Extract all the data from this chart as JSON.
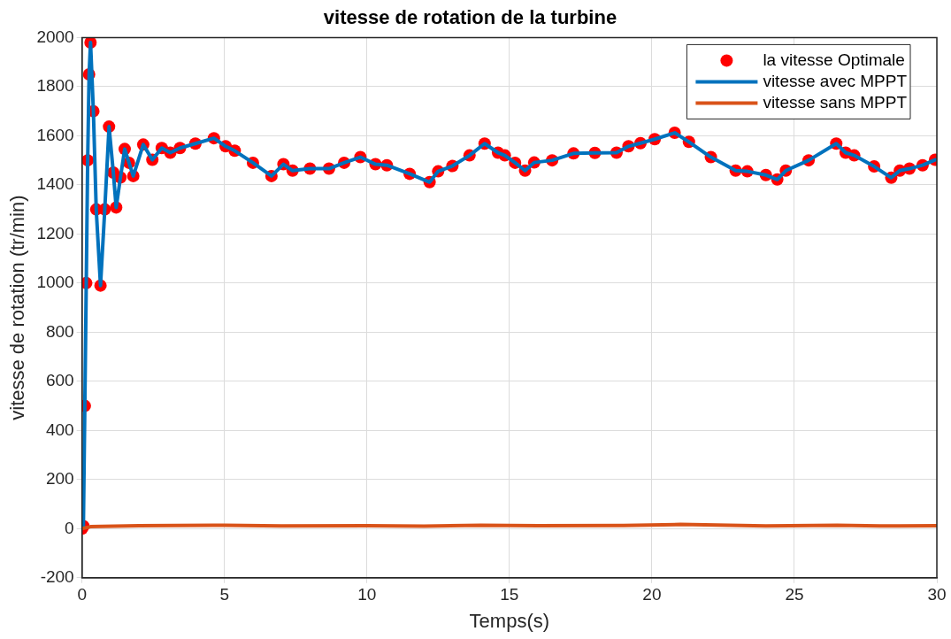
{
  "chart_data": {
    "type": "line",
    "title": "vitesse de rotation de la turbine",
    "xlabel": "Temps(s)",
    "ylabel": "vitesse de rotation (tr/min)",
    "xlim": [
      0,
      30
    ],
    "xticks": [
      0,
      5,
      10,
      15,
      20,
      25,
      30
    ],
    "ylim": [
      -200,
      2000
    ],
    "yticks": [
      -200,
      0,
      200,
      400,
      600,
      800,
      1000,
      1200,
      1400,
      1600,
      1800,
      2000
    ],
    "grid": true,
    "legend": "top right",
    "series": [
      {
        "name": "la vitesse Optimale",
        "type": "scatter",
        "marker": "circle",
        "color": "#ff0000",
        "x": [
          0,
          0.05,
          0.1,
          0.15,
          0.2,
          0.25,
          0.3,
          0.4,
          0.5,
          0.65,
          0.8,
          0.95,
          1.1,
          1.2,
          1.35,
          1.5,
          1.65,
          1.8,
          2.15,
          2.47,
          2.8,
          3.1,
          3.44,
          3.98,
          4.63,
          5.04,
          5.36,
          6.0,
          6.65,
          7.07,
          7.39,
          8.0,
          8.67,
          9.2,
          9.77,
          10.3,
          10.7,
          11.5,
          12.2,
          12.5,
          13.0,
          13.6,
          14.13,
          14.6,
          14.84,
          15.2,
          15.55,
          15.87,
          16.5,
          17.25,
          18.0,
          18.76,
          19.18,
          19.6,
          20.1,
          20.8,
          21.3,
          22.07,
          22.94,
          23.35,
          24.0,
          24.4,
          24.7,
          25.5,
          26.47,
          26.8,
          27.1,
          27.8,
          28.4,
          28.7,
          29.04,
          29.5,
          29.94
        ],
        "values": [
          0,
          10,
          500,
          1000,
          1500,
          1850,
          1980,
          1700,
          1300,
          990,
          1300,
          1637,
          1450,
          1308,
          1430,
          1546,
          1490,
          1436,
          1564,
          1502,
          1550,
          1531,
          1550,
          1568,
          1590,
          1557,
          1539,
          1490,
          1436,
          1484,
          1458,
          1466,
          1466,
          1490,
          1513,
          1484,
          1480,
          1445,
          1411,
          1455,
          1477,
          1520,
          1568,
          1531,
          1520,
          1490,
          1458,
          1491,
          1500,
          1528,
          1530,
          1531,
          1557,
          1570,
          1586,
          1612,
          1575,
          1513,
          1458,
          1455,
          1440,
          1422,
          1458,
          1500,
          1568,
          1531,
          1520,
          1475,
          1429,
          1458,
          1466,
          1480,
          1502
        ]
      },
      {
        "name": "vitesse avec MPPT",
        "type": "line",
        "line_style": "solid",
        "color": "#0072bd",
        "x": [
          0,
          0.05,
          0.1,
          0.15,
          0.2,
          0.25,
          0.3,
          0.4,
          0.5,
          0.65,
          0.8,
          0.95,
          1.1,
          1.2,
          1.35,
          1.5,
          1.65,
          1.8,
          2.15,
          2.47,
          2.8,
          3.1,
          3.44,
          3.98,
          4.63,
          5.04,
          5.36,
          6.0,
          6.65,
          7.07,
          7.39,
          8.0,
          8.67,
          9.2,
          9.77,
          10.3,
          10.7,
          11.5,
          12.2,
          12.5,
          13.0,
          13.6,
          14.13,
          14.6,
          14.84,
          15.2,
          15.55,
          15.87,
          16.5,
          17.25,
          18.0,
          18.76,
          19.18,
          19.6,
          20.1,
          20.8,
          21.3,
          22.07,
          22.94,
          23.35,
          24.0,
          24.4,
          24.7,
          25.5,
          26.47,
          26.8,
          27.1,
          27.8,
          28.4,
          28.7,
          29.04,
          29.5,
          29.94
        ],
        "values": [
          0,
          10,
          500,
          1000,
          1500,
          1850,
          1980,
          1700,
          1300,
          990,
          1300,
          1637,
          1450,
          1308,
          1430,
          1546,
          1490,
          1436,
          1564,
          1502,
          1550,
          1531,
          1550,
          1568,
          1590,
          1557,
          1539,
          1490,
          1436,
          1484,
          1458,
          1466,
          1466,
          1490,
          1513,
          1484,
          1480,
          1445,
          1411,
          1455,
          1477,
          1520,
          1568,
          1531,
          1520,
          1490,
          1458,
          1491,
          1500,
          1528,
          1530,
          1531,
          1557,
          1570,
          1586,
          1612,
          1575,
          1513,
          1458,
          1455,
          1440,
          1422,
          1458,
          1500,
          1568,
          1531,
          1520,
          1475,
          1429,
          1458,
          1466,
          1480,
          1502
        ]
      },
      {
        "name": "vitesse sans MPPT",
        "type": "line",
        "line_style": "solid",
        "color": "#d95319",
        "x": [
          0,
          0.3,
          2,
          4.6,
          7,
          10,
          12,
          14,
          16,
          19,
          21,
          24,
          26.5,
          28,
          30
        ],
        "values": [
          0,
          8,
          12,
          14,
          11,
          12,
          10,
          14,
          12,
          13,
          17,
          11,
          14,
          11,
          12
        ]
      }
    ]
  }
}
